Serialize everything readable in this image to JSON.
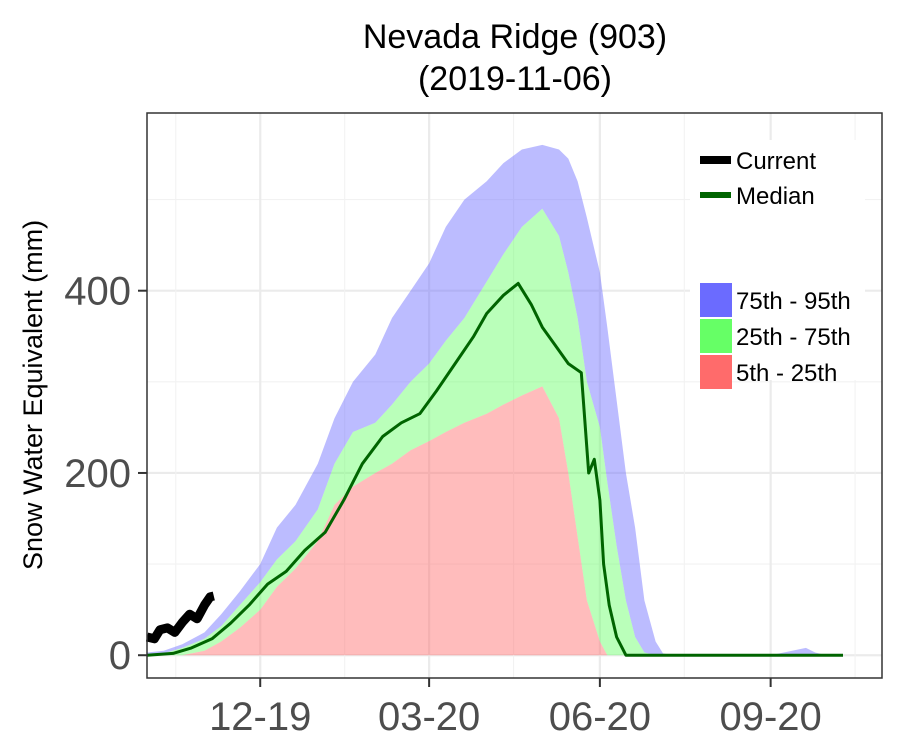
{
  "chart_data": {
    "type": "area",
    "title_lines": [
      "Nevada Ridge (903)",
      "(2019-11-06)"
    ],
    "ylabel": "Snow Water Equivalent (mm)",
    "xlabel": "",
    "x_range": [
      "2019-10-01",
      "2020-10-31"
    ],
    "ylim": [
      -25,
      595
    ],
    "y_ticks": [
      0,
      200,
      400
    ],
    "y_tick_labels": [
      "0",
      "200",
      "400"
    ],
    "x_ticks": [
      "2019-12-01",
      "2020-03-01",
      "2020-06-01",
      "2020-09-01"
    ],
    "x_tick_labels": [
      "12-19",
      "03-20",
      "06-20",
      "09-20"
    ],
    "grid": true,
    "legend_placement": "top-right",
    "legend": {
      "lines": [
        {
          "label": "Current",
          "color": "#000000"
        },
        {
          "label": "Median",
          "color": "#006400"
        }
      ],
      "bands": [
        {
          "label": "75th - 95th",
          "color": "#6B6BFF"
        },
        {
          "label": "25th - 75th",
          "color": "#66FF66"
        },
        {
          "label": "5th - 25th",
          "color": "#FF6B6B"
        }
      ]
    },
    "percentiles": {
      "x": [
        "2019-10-01",
        "2019-10-10",
        "2019-10-20",
        "2019-11-01",
        "2019-11-10",
        "2019-11-20",
        "2019-12-01",
        "2019-12-10",
        "2019-12-20",
        "2020-01-01",
        "2020-01-10",
        "2020-01-20",
        "2020-02-01",
        "2020-02-10",
        "2020-02-20",
        "2020-03-01",
        "2020-03-10",
        "2020-03-20",
        "2020-04-01",
        "2020-04-10",
        "2020-04-20",
        "2020-05-01",
        "2020-05-10",
        "2020-05-15",
        "2020-05-20",
        "2020-05-25",
        "2020-06-01",
        "2020-06-05",
        "2020-06-10",
        "2020-06-15",
        "2020-06-20",
        "2020-06-25",
        "2020-07-01",
        "2020-07-05",
        "2020-07-10",
        "2020-07-15",
        "2020-07-20",
        "2020-08-01",
        "2020-09-01",
        "2020-09-20",
        "2020-09-25",
        "2020-10-01",
        "2020-10-10"
      ],
      "p95": [
        3,
        5,
        12,
        25,
        45,
        70,
        100,
        140,
        165,
        210,
        260,
        300,
        330,
        370,
        400,
        430,
        470,
        500,
        520,
        540,
        555,
        560,
        555,
        545,
        520,
        480,
        420,
        360,
        280,
        200,
        140,
        60,
        15,
        2,
        0,
        0,
        0,
        0,
        0,
        8,
        3,
        0,
        0
      ],
      "p75": [
        0,
        2,
        8,
        18,
        32,
        55,
        80,
        105,
        125,
        160,
        210,
        245,
        255,
        275,
        300,
        320,
        345,
        370,
        410,
        440,
        470,
        490,
        460,
        420,
        370,
        300,
        250,
        190,
        120,
        60,
        20,
        3,
        0,
        0,
        0,
        0,
        0,
        0,
        0,
        0,
        0,
        0,
        0
      ],
      "p25": [
        0,
        0,
        0,
        5,
        15,
        30,
        50,
        75,
        95,
        125,
        165,
        185,
        200,
        210,
        225,
        235,
        245,
        255,
        265,
        275,
        285,
        295,
        260,
        200,
        130,
        60,
        15,
        0,
        0,
        0,
        0,
        0,
        0,
        0,
        0,
        0,
        0,
        0,
        0,
        0,
        0,
        0,
        0
      ],
      "p5": [
        0,
        0,
        0,
        0,
        0,
        0,
        0,
        0,
        0,
        0,
        0,
        0,
        0,
        0,
        0,
        0,
        0,
        0,
        0,
        0,
        0,
        0,
        0,
        0,
        0,
        0,
        0,
        0,
        0,
        0,
        0,
        0,
        0,
        0,
        0,
        0,
        0,
        0,
        0,
        0,
        0,
        0,
        0
      ]
    },
    "series": [
      {
        "name": "Median",
        "color": "#006400",
        "x": [
          "2019-10-01",
          "2019-10-15",
          "2019-10-25",
          "2019-11-05",
          "2019-11-15",
          "2019-11-25",
          "2019-12-05",
          "2019-12-15",
          "2019-12-25",
          "2020-01-05",
          "2020-01-15",
          "2020-01-25",
          "2020-02-05",
          "2020-02-15",
          "2020-02-25",
          "2020-03-05",
          "2020-03-15",
          "2020-03-25",
          "2020-04-01",
          "2020-04-10",
          "2020-04-18",
          "2020-04-25",
          "2020-05-01",
          "2020-05-08",
          "2020-05-15",
          "2020-05-22",
          "2020-05-26",
          "2020-05-29",
          "2020-06-01",
          "2020-06-03",
          "2020-06-06",
          "2020-06-10",
          "2020-06-15",
          "2020-06-20",
          "2020-06-25",
          "2020-07-15",
          "2020-09-01",
          "2020-10-10"
        ],
        "values": [
          0,
          2,
          8,
          18,
          35,
          55,
          78,
          92,
          115,
          135,
          170,
          210,
          240,
          255,
          265,
          290,
          320,
          350,
          375,
          395,
          408,
          385,
          360,
          340,
          320,
          310,
          200,
          215,
          170,
          100,
          55,
          20,
          0,
          0,
          0,
          0,
          0,
          0
        ]
      },
      {
        "name": "Current",
        "color": "#000000",
        "x": [
          "2019-10-01",
          "2019-10-05",
          "2019-10-08",
          "2019-10-12",
          "2019-10-16",
          "2019-10-20",
          "2019-10-24",
          "2019-10-28",
          "2019-11-01",
          "2019-11-04",
          "2019-11-06"
        ],
        "values": [
          20,
          18,
          28,
          30,
          25,
          36,
          45,
          40,
          55,
          64,
          65
        ]
      }
    ]
  }
}
